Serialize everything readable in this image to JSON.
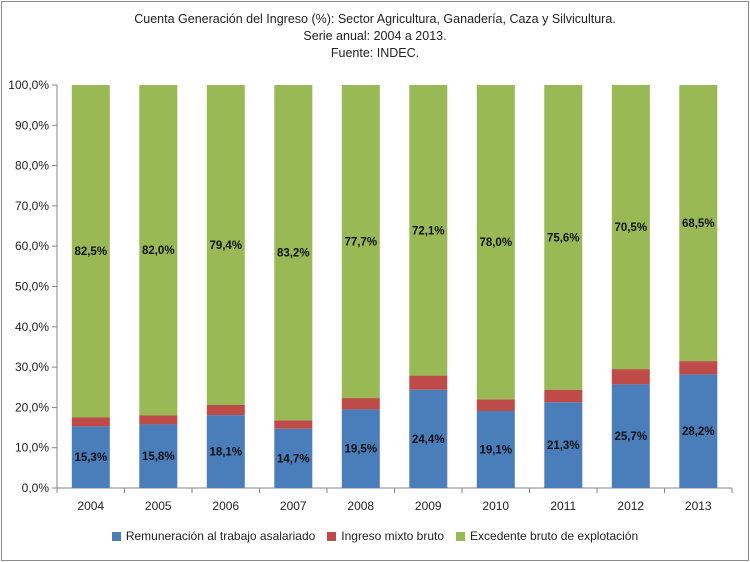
{
  "chart_data": {
    "type": "bar",
    "stacked": true,
    "title": [
      "Cuenta Generación del Ingreso (%): Sector Agricultura, Ganadería, Caza y Silvicultura.",
      "Serie anual: 2004 a 2013.",
      "Fuente: INDEC."
    ],
    "categories": [
      "2004",
      "2005",
      "2006",
      "2007",
      "2008",
      "2009",
      "2010",
      "2011",
      "2012",
      "2013"
    ],
    "y_ticks": [
      "0,0%",
      "10,0%",
      "20,0%",
      "30,0%",
      "40,0%",
      "50,0%",
      "60,0%",
      "70,0%",
      "80,0%",
      "90,0%",
      "100,0%"
    ],
    "ylim": [
      0,
      100
    ],
    "grid": false,
    "legend_position": "bottom",
    "series": [
      {
        "name": "Remuneración al trabajo asalariado",
        "color": "#4a7ebb",
        "values": [
          15.3,
          15.8,
          18.1,
          14.7,
          19.5,
          24.4,
          19.1,
          21.3,
          25.7,
          28.2
        ],
        "labels": [
          "15,3%",
          "15,8%",
          "18,1%",
          "14,7%",
          "19,5%",
          "24,4%",
          "19,1%",
          "21,3%",
          "25,7%",
          "28,2%"
        ]
      },
      {
        "name": "Ingreso mixto bruto",
        "color": "#be4b48",
        "values": [
          2.2,
          2.2,
          2.5,
          2.1,
          2.8,
          3.5,
          2.9,
          3.1,
          3.8,
          3.3
        ],
        "labels": []
      },
      {
        "name": "Excedente bruto de explotación",
        "color": "#98b954",
        "values": [
          82.5,
          82.0,
          79.4,
          83.2,
          77.7,
          72.1,
          78.0,
          75.6,
          70.5,
          68.5
        ],
        "labels": [
          "82,5%",
          "82,0%",
          "79,4%",
          "83,2%",
          "77,7%",
          "72,1%",
          "78,0%",
          "75,6%",
          "70,5%",
          "68,5%"
        ]
      }
    ]
  }
}
